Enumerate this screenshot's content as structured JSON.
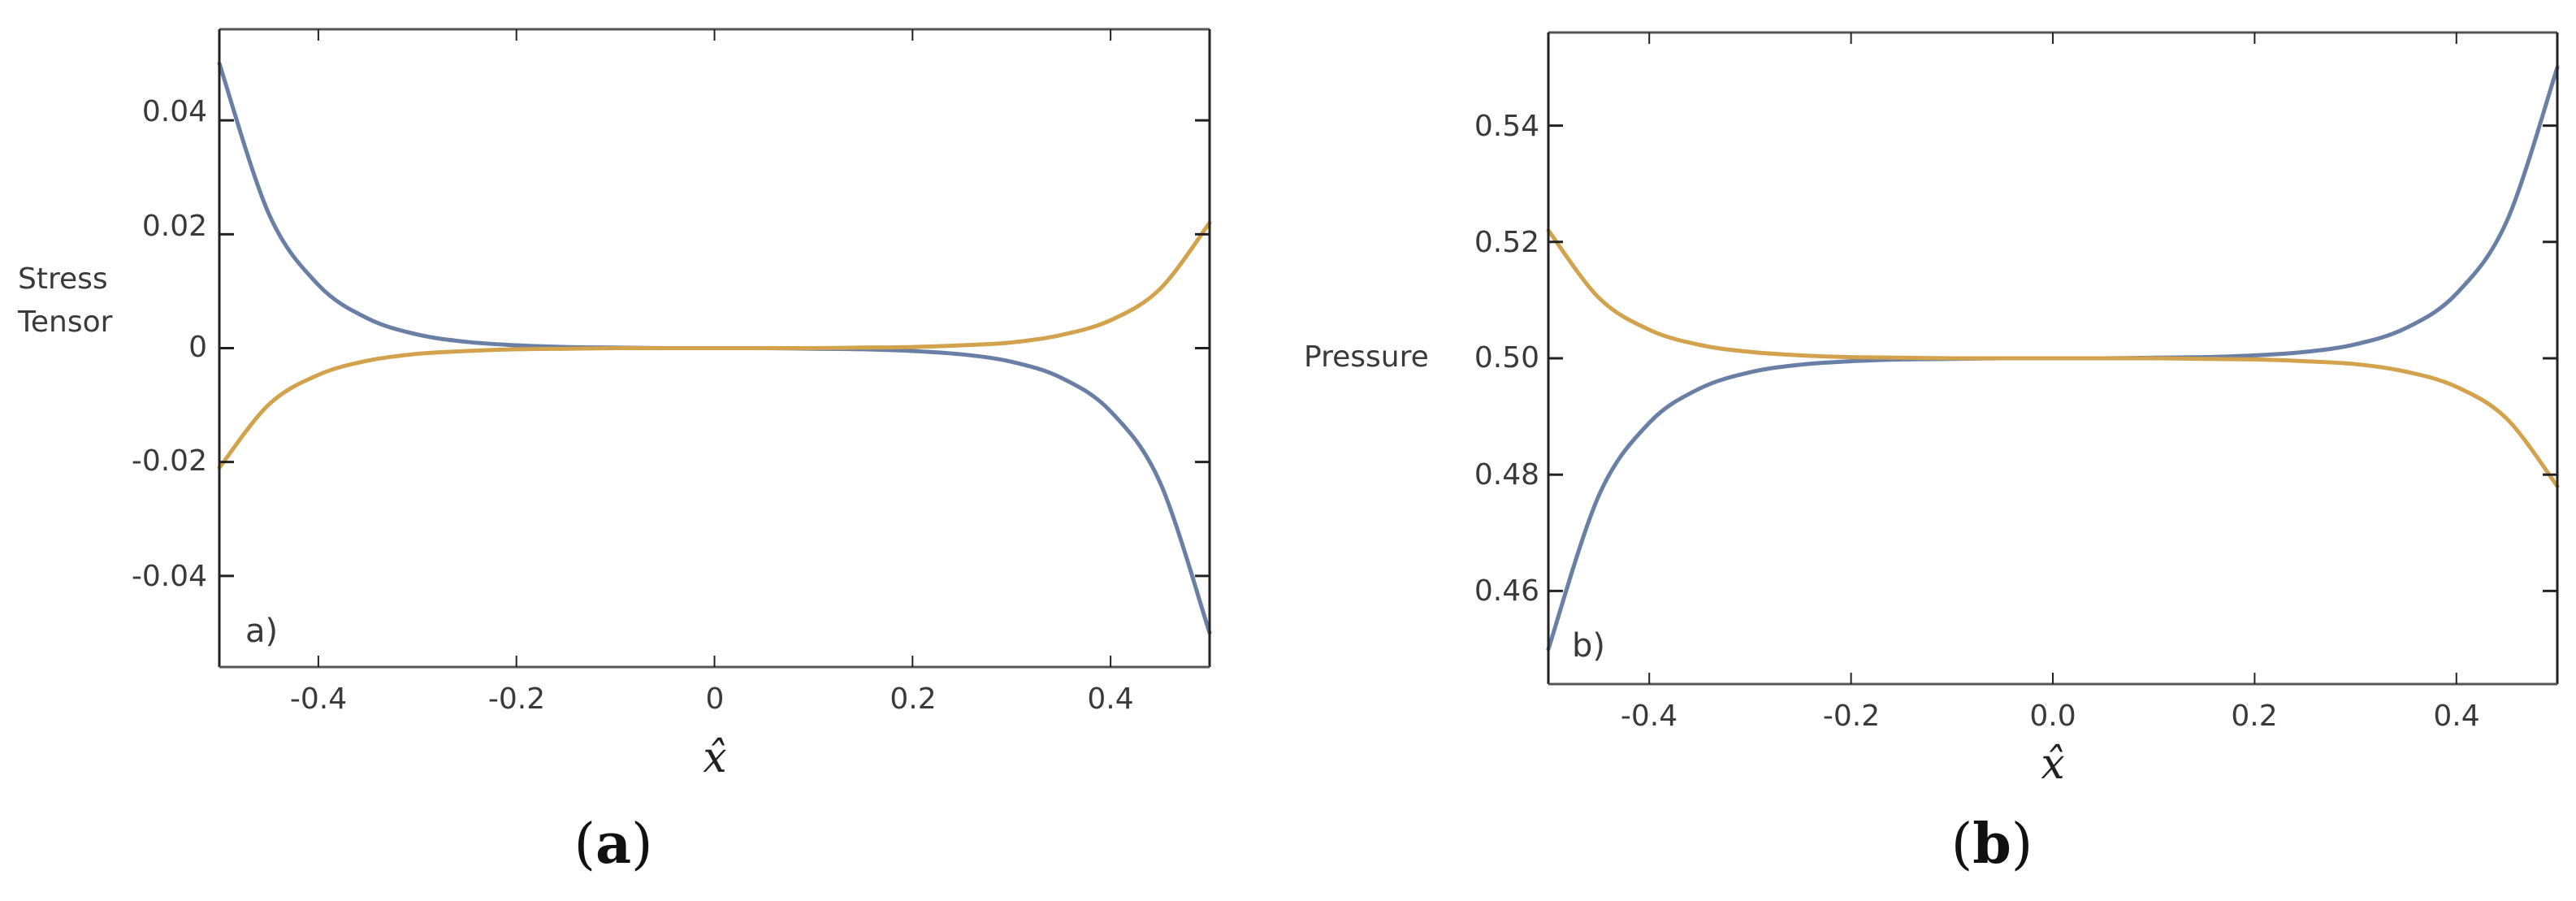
{
  "figure": {
    "colors": {
      "series_blue": "#6a7fa6",
      "series_orange": "#d2a24c",
      "axis": "#222222",
      "frame_top": "#555555"
    }
  },
  "chart_data": [
    {
      "type": "line",
      "panel": "a",
      "panel_tag": "a)",
      "caption_open": "(",
      "caption_letter": "a",
      "caption_close": ")",
      "title": "",
      "xlabel": "x̂",
      "ylabel_lines": [
        "Stress",
        "Tensor"
      ],
      "ylabel": "Stress Tensor",
      "xlim": [
        -0.5,
        0.5
      ],
      "ylim": [
        -0.056,
        0.056
      ],
      "xticks": [
        -0.4,
        -0.2,
        0,
        0.2,
        0.4
      ],
      "xtick_labels": [
        "-0.4",
        "-0.2",
        "0",
        "0.2",
        "0.4"
      ],
      "yticks": [
        -0.04,
        -0.02,
        0,
        0.02,
        0.04
      ],
      "ytick_labels": [
        "-0.04",
        "-0.02",
        "0",
        "0.02",
        "0.04"
      ],
      "grid": false,
      "legend": null,
      "x": [
        -0.5,
        -0.45,
        -0.4,
        -0.35,
        -0.3,
        -0.25,
        -0.2,
        -0.15,
        -0.1,
        -0.05,
        0,
        0.05,
        0.1,
        0.15,
        0.2,
        0.25,
        0.3,
        0.35,
        0.4,
        0.45,
        0.5
      ],
      "series": [
        {
          "name": "blue",
          "color": "#6a7fa6",
          "values": [
            0.05,
            0.0236,
            0.0111,
            0.0052,
            0.0024,
            0.0011,
            0.0005,
            0.0002,
            0.0001,
            0.0,
            0.0,
            0.0,
            -0.0001,
            -0.0002,
            -0.0005,
            -0.0011,
            -0.0024,
            -0.0052,
            -0.0111,
            -0.0236,
            -0.05
          ]
        },
        {
          "name": "orange",
          "color": "#d2a24c",
          "values": [
            -0.021,
            -0.0099,
            -0.0047,
            -0.0022,
            -0.001,
            -0.0005,
            -0.0002,
            -0.0001,
            0.0,
            0.0,
            0.0,
            0.0,
            0.0,
            0.0001,
            0.0002,
            0.0005,
            0.001,
            0.0023,
            0.0049,
            0.0104,
            0.022
          ]
        }
      ]
    },
    {
      "type": "line",
      "panel": "b",
      "panel_tag": "b)",
      "caption_open": "(",
      "caption_letter": "b",
      "caption_close": ")",
      "title": "",
      "xlabel": "x̂",
      "ylabel_lines": [
        "Pressure"
      ],
      "ylabel": "Pressure",
      "xlim": [
        -0.5,
        0.5
      ],
      "ylim": [
        0.444,
        0.556
      ],
      "xticks": [
        -0.4,
        -0.2,
        0.0,
        0.2,
        0.4
      ],
      "xtick_labels": [
        "-0.4",
        "-0.2",
        "0.0",
        "0.2",
        "0.4"
      ],
      "yticks": [
        0.46,
        0.48,
        0.5,
        0.52,
        0.54
      ],
      "ytick_labels": [
        "0.46",
        "0.48",
        "0.50",
        "0.52",
        "0.54"
      ],
      "grid": false,
      "legend": null,
      "x": [
        -0.5,
        -0.45,
        -0.4,
        -0.35,
        -0.3,
        -0.25,
        -0.2,
        -0.15,
        -0.1,
        -0.05,
        0,
        0.05,
        0.1,
        0.15,
        0.2,
        0.25,
        0.3,
        0.35,
        0.4,
        0.45,
        0.5
      ],
      "series": [
        {
          "name": "blue",
          "color": "#6a7fa6",
          "values": [
            0.45,
            0.4764,
            0.4889,
            0.4948,
            0.4976,
            0.4989,
            0.4995,
            0.4998,
            0.4999,
            0.5,
            0.5,
            0.5,
            0.5001,
            0.5002,
            0.5005,
            0.5011,
            0.5024,
            0.5052,
            0.5111,
            0.5236,
            0.55
          ]
        },
        {
          "name": "orange",
          "color": "#d2a24c",
          "values": [
            0.522,
            0.5104,
            0.5049,
            0.5023,
            0.5011,
            0.5005,
            0.5002,
            0.5001,
            0.5,
            0.5,
            0.5,
            0.5,
            0.5,
            0.4999,
            0.4998,
            0.4995,
            0.499,
            0.4977,
            0.4951,
            0.4896,
            0.478
          ]
        }
      ]
    }
  ]
}
